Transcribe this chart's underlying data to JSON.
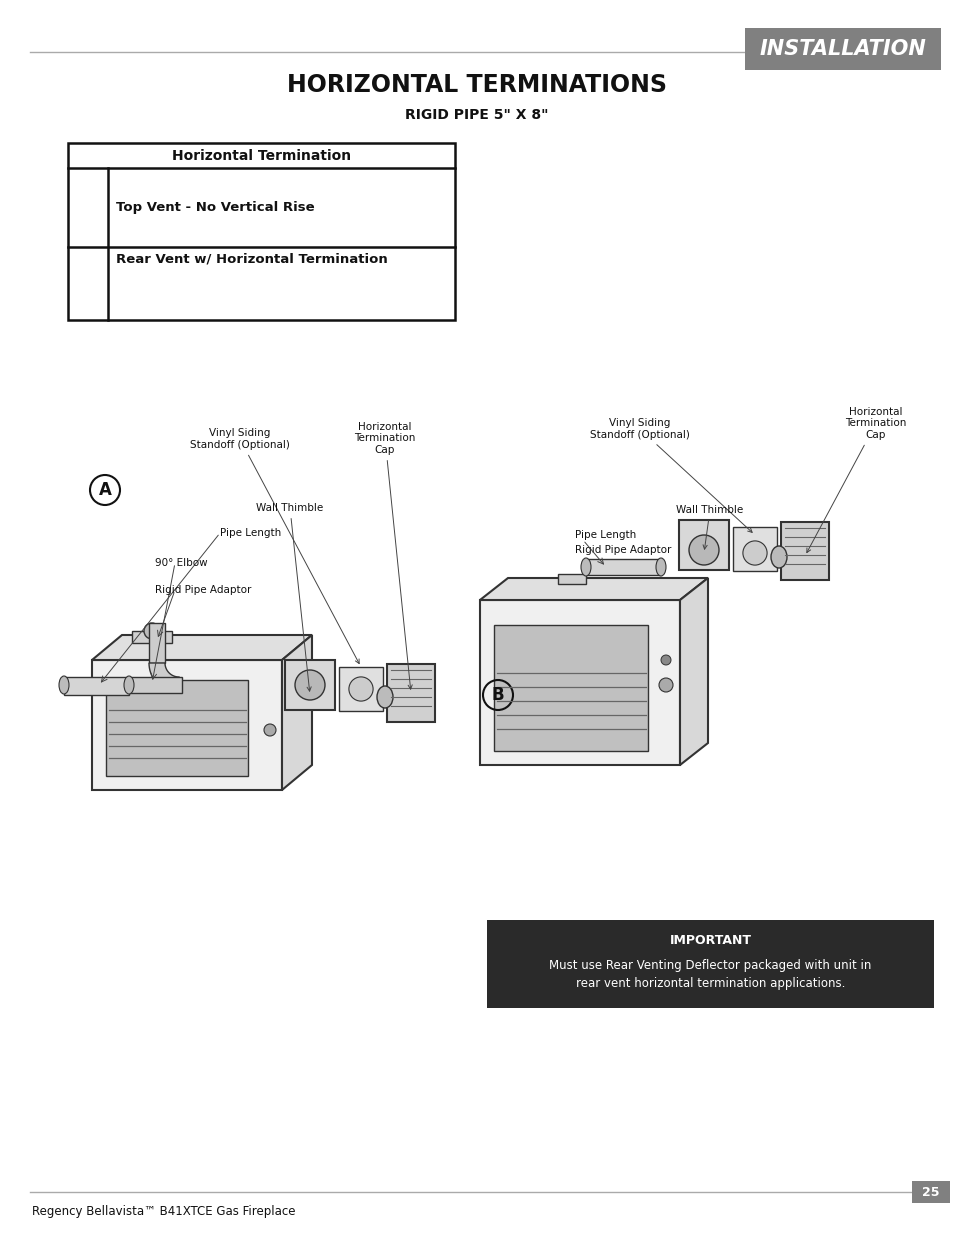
{
  "page_title": "INSTALLATION",
  "page_title_bg": "#808080",
  "page_title_color": "#ffffff",
  "section_title": "HORIZONTAL TERMINATIONS",
  "subtitle": "RIGID PIPE 5\" X 8\"",
  "table_header": "Horizontal Termination",
  "table_row1": "Top Vent - No Vertical Rise",
  "table_row2": "Rear Vent w/ Horizontal Termination",
  "important_title": "IMPORTANT",
  "important_text": "Must use Rear Venting Deflector packaged with unit in\nrear vent horizontal termination applications.",
  "important_bg": "#2a2a2a",
  "important_text_color": "#ffffff",
  "footer_text": "Regency Bellavista™ B41XTCE Gas Fireplace",
  "page_number": "25",
  "page_number_bg": "#808080",
  "page_number_color": "#ffffff",
  "header_line_color": "#aaaaaa",
  "footer_line_color": "#aaaaaa",
  "label_A": "A",
  "label_B": "B",
  "bg_color": "#ffffff",
  "table_border_color": "#111111",
  "body_text_color": "#111111",
  "diagram_color": "#333333",
  "diagram_light": "#dddddd",
  "diagram_mid": "#aaaaaa"
}
